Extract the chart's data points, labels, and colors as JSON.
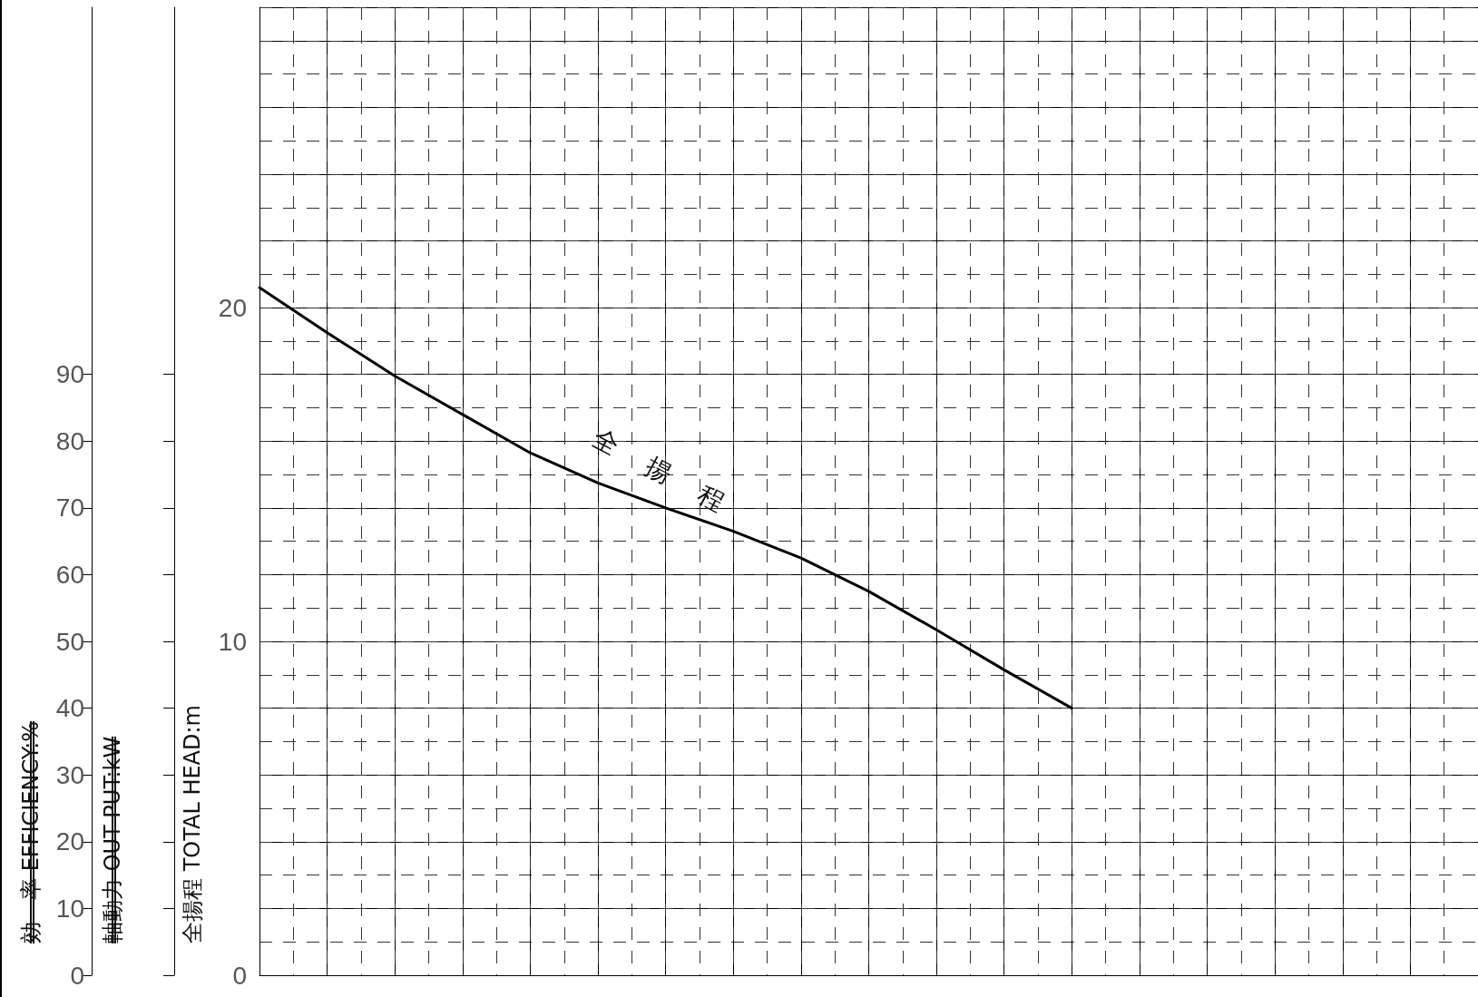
{
  "chart_data": {
    "type": "line",
    "ylabel": "全揚程 TOTAL HEAD:m",
    "y2label": "効　率 EFFICIENCY:%",
    "annotations": [
      "全揚程",
      "軸動力 OUT PUT:kW"
    ],
    "categories": [
      null,
      null,
      null,
      null,
      null,
      null,
      null,
      null,
      null,
      null,
      null,
      null,
      null,
      null,
      null,
      null,
      null,
      null,
      null
    ],
    "series": [
      {
        "color": "#000000",
        "values": [
          20.6,
          19.25,
          17.95,
          16.8,
          15.65,
          14.75,
          14.0,
          13.3,
          12.5,
          11.5,
          10.35,
          9.15,
          8.0,
          null,
          null,
          null,
          null,
          null,
          null
        ]
      }
    ],
    "ylim": [
      0,
      29
    ],
    "yticks": [
      0,
      10,
      20
    ],
    "y2lim": [
      0,
      145
    ],
    "y2ticks": [
      0,
      10,
      20,
      30,
      40,
      50,
      60,
      70,
      80,
      90
    ],
    "grid": true,
    "tick_labels": "y",
    "marker": "none",
    "line_style": "solid"
  }
}
